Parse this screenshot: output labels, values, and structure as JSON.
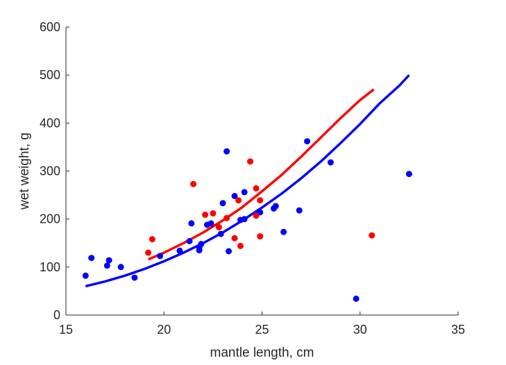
{
  "chart_data": {
    "type": "scatter",
    "title": "",
    "xlabel": "mantle length, cm",
    "ylabel": "wet weight, g",
    "xlim": [
      15,
      35
    ],
    "ylim": [
      0,
      600
    ],
    "xticks": [
      15,
      20,
      25,
      30,
      35
    ],
    "yticks": [
      0,
      100,
      200,
      300,
      400,
      500,
      600
    ],
    "grid": false,
    "legend": "none",
    "series": [
      {
        "kind": "points",
        "color": "#0000ff",
        "points": [
          [
            16.0,
            82
          ],
          [
            16.3,
            119
          ],
          [
            17.1,
            103
          ],
          [
            17.2,
            114
          ],
          [
            17.8,
            100
          ],
          [
            18.5,
            78
          ],
          [
            19.8,
            123
          ],
          [
            20.8,
            134
          ],
          [
            21.3,
            154
          ],
          [
            21.4,
            191
          ],
          [
            21.8,
            135
          ],
          [
            21.8,
            141
          ],
          [
            21.9,
            148
          ],
          [
            22.2,
            188
          ],
          [
            22.4,
            191
          ],
          [
            22.9,
            169
          ],
          [
            23.0,
            233
          ],
          [
            23.2,
            341
          ],
          [
            23.3,
            133
          ],
          [
            23.6,
            248
          ],
          [
            23.9,
            198
          ],
          [
            24.1,
            200
          ],
          [
            24.1,
            256
          ],
          [
            24.9,
            214
          ],
          [
            25.6,
            222
          ],
          [
            25.7,
            227
          ],
          [
            26.1,
            173
          ],
          [
            26.9,
            218
          ],
          [
            27.3,
            362
          ],
          [
            28.5,
            318
          ],
          [
            29.8,
            34
          ],
          [
            32.5,
            294
          ]
        ]
      },
      {
        "kind": "points",
        "color": "#ff0000",
        "points": [
          [
            19.2,
            130
          ],
          [
            19.4,
            158
          ],
          [
            21.5,
            273
          ],
          [
            22.1,
            209
          ],
          [
            22.5,
            212
          ],
          [
            22.8,
            183
          ],
          [
            23.2,
            202
          ],
          [
            23.6,
            160
          ],
          [
            23.8,
            239
          ],
          [
            23.9,
            144
          ],
          [
            24.4,
            320
          ],
          [
            24.7,
            264
          ],
          [
            24.7,
            207
          ],
          [
            24.9,
            239
          ],
          [
            24.9,
            164
          ],
          [
            30.6,
            166
          ]
        ]
      },
      {
        "kind": "curve",
        "color": "#0000ff",
        "points": [
          [
            16.0,
            60
          ],
          [
            17.0,
            70
          ],
          [
            18.0,
            82
          ],
          [
            19.0,
            96
          ],
          [
            20.0,
            112
          ],
          [
            21.0,
            130
          ],
          [
            22.0,
            150
          ],
          [
            23.0,
            172
          ],
          [
            24.0,
            197
          ],
          [
            25.0,
            224
          ],
          [
            26.0,
            253
          ],
          [
            27.0,
            285
          ],
          [
            28.0,
            320
          ],
          [
            29.0,
            358
          ],
          [
            30.0,
            398
          ],
          [
            31.0,
            441
          ],
          [
            32.0,
            478
          ],
          [
            32.5,
            500
          ]
        ]
      },
      {
        "kind": "curve",
        "color": "#ff0000",
        "points": [
          [
            19.2,
            116
          ],
          [
            20.0,
            130
          ],
          [
            21.0,
            150
          ],
          [
            22.0,
            172
          ],
          [
            23.0,
            197
          ],
          [
            24.0,
            225
          ],
          [
            25.0,
            258
          ],
          [
            26.0,
            292
          ],
          [
            27.0,
            330
          ],
          [
            28.0,
            370
          ],
          [
            29.0,
            410
          ],
          [
            30.0,
            448
          ],
          [
            30.7,
            470
          ]
        ]
      }
    ]
  }
}
